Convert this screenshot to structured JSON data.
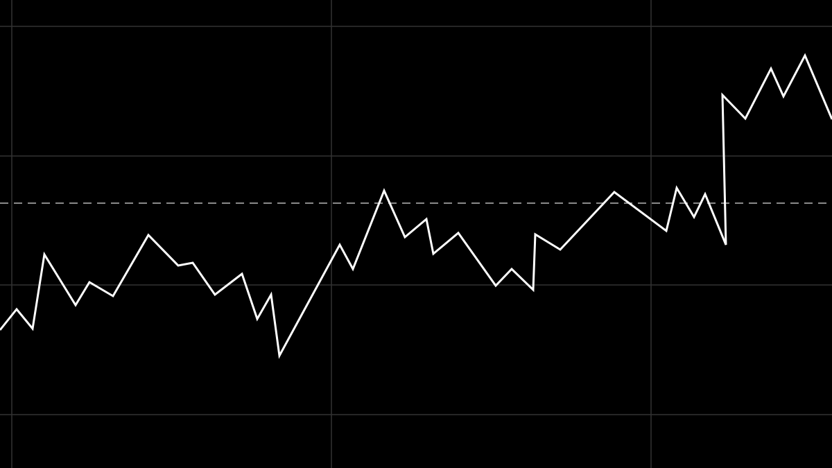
{
  "chart_data": {
    "type": "line",
    "grid": true,
    "x": [
      0,
      24,
      47,
      64,
      109,
      129,
      163,
      214,
      257,
      278,
      310,
      349,
      371,
      391,
      403,
      490,
      509,
      554,
      584,
      615,
      625,
      661,
      715,
      738,
      769,
      772,
      808,
      886,
      961,
      976,
      1001,
      1017,
      1047,
      1042,
      1075,
      1112,
      1130,
      1161,
      1200
    ],
    "series": [
      {
        "color": "#ffffff",
        "values": [
          199,
          229,
          201,
          308,
          235,
          268,
          248,
          336,
          292,
          296,
          250,
          280,
          215,
          250,
          162,
          322,
          287,
          400,
          333,
          359,
          309,
          339,
          263,
          287,
          257,
          337,
          315,
          398,
          342,
          404,
          362,
          395,
          322,
          538,
          504,
          576,
          536,
          595,
          503
        ]
      }
    ],
    "reference_line": {
      "value": 382,
      "color": "#8a8a8a"
    },
    "xlim": [
      0,
      1200
    ],
    "xticks": [
      17,
      478,
      939
    ],
    "ylim": [
      0,
      675
    ],
    "yticks": [
      77,
      264,
      450,
      637
    ]
  }
}
